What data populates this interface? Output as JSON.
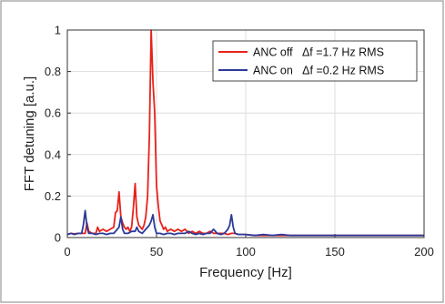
{
  "chart_data": {
    "type": "line",
    "title": "",
    "xlabel": "Frequency [Hz]",
    "ylabel": "FFT detuning [a.u.]",
    "xlim": [
      0,
      200
    ],
    "ylim": [
      0,
      1
    ],
    "xticks": [
      "0",
      "50",
      "100",
      "150",
      "200"
    ],
    "yticks": [
      "0",
      "0.2",
      "0.4",
      "0.6",
      "0.8",
      "1"
    ],
    "grid": true,
    "legend_position": "top-right",
    "series": [
      {
        "name": "ANC off   Δf =1.7 Hz RMS",
        "color": "#e8221b",
        "x": [
          0,
          2,
          4,
          6,
          8,
          10,
          11,
          12,
          14,
          16,
          17,
          18,
          20,
          22,
          24,
          26,
          27,
          28,
          29,
          30,
          31,
          32,
          33,
          34,
          35,
          36,
          37,
          38,
          39,
          40,
          41,
          42,
          43,
          44,
          45,
          46,
          47,
          48,
          49,
          50,
          51,
          52,
          53,
          54,
          55,
          56,
          58,
          60,
          62,
          64,
          66,
          68,
          70,
          72,
          74,
          76,
          78,
          80,
          82,
          84,
          86,
          88,
          90,
          92,
          94,
          96,
          98,
          100,
          105,
          110,
          115,
          120,
          125,
          130,
          140,
          150,
          160,
          170,
          180,
          190,
          200
        ],
        "y": [
          0.015,
          0.02,
          0.018,
          0.02,
          0.02,
          0.02,
          0.07,
          0.03,
          0.02,
          0.02,
          0.05,
          0.03,
          0.04,
          0.03,
          0.04,
          0.05,
          0.12,
          0.13,
          0.22,
          0.1,
          0.07,
          0.05,
          0.04,
          0.05,
          0.03,
          0.05,
          0.14,
          0.26,
          0.1,
          0.06,
          0.05,
          0.04,
          0.06,
          0.1,
          0.2,
          0.5,
          1.0,
          0.75,
          0.6,
          0.25,
          0.15,
          0.08,
          0.06,
          0.04,
          0.05,
          0.03,
          0.04,
          0.03,
          0.04,
          0.03,
          0.04,
          0.02,
          0.03,
          0.02,
          0.03,
          0.02,
          0.02,
          0.03,
          0.02,
          0.02,
          0.02,
          0.02,
          0.015,
          0.02,
          0.02,
          0.015,
          0.015,
          0.015,
          0.01,
          0.01,
          0.01,
          0.01,
          0.01,
          0.01,
          0.01,
          0.01,
          0.01,
          0.01,
          0.01,
          0.01,
          0.01
        ]
      },
      {
        "name": "ANC on   Δf =0.2 Hz RMS",
        "color": "#2b3a99",
        "x": [
          0,
          2,
          4,
          6,
          8,
          9,
          10,
          11,
          12,
          14,
          16,
          18,
          20,
          22,
          24,
          26,
          28,
          29,
          30,
          31,
          32,
          34,
          36,
          38,
          39,
          40,
          42,
          44,
          46,
          47,
          48,
          49,
          50,
          52,
          54,
          56,
          58,
          60,
          62,
          64,
          66,
          68,
          70,
          72,
          74,
          76,
          78,
          80,
          82,
          84,
          86,
          88,
          90,
          91,
          92,
          93,
          94,
          96,
          98,
          100,
          105,
          110,
          115,
          120,
          125,
          130,
          140,
          150,
          160,
          170,
          180,
          190,
          200
        ],
        "y": [
          0.015,
          0.02,
          0.015,
          0.02,
          0.02,
          0.06,
          0.13,
          0.05,
          0.02,
          0.02,
          0.015,
          0.02,
          0.02,
          0.015,
          0.02,
          0.02,
          0.04,
          0.05,
          0.1,
          0.04,
          0.02,
          0.02,
          0.03,
          0.03,
          0.05,
          0.03,
          0.02,
          0.04,
          0.06,
          0.08,
          0.11,
          0.05,
          0.02,
          0.02,
          0.015,
          0.02,
          0.02,
          0.015,
          0.02,
          0.02,
          0.02,
          0.03,
          0.02,
          0.015,
          0.02,
          0.015,
          0.02,
          0.02,
          0.04,
          0.02,
          0.015,
          0.02,
          0.04,
          0.06,
          0.11,
          0.05,
          0.02,
          0.015,
          0.015,
          0.015,
          0.01,
          0.015,
          0.01,
          0.015,
          0.01,
          0.01,
          0.01,
          0.01,
          0.01,
          0.01,
          0.01,
          0.01,
          0.01
        ]
      }
    ]
  },
  "colors": {
    "frame": "#999999",
    "grid": "#dedede",
    "axis": "#333333"
  }
}
